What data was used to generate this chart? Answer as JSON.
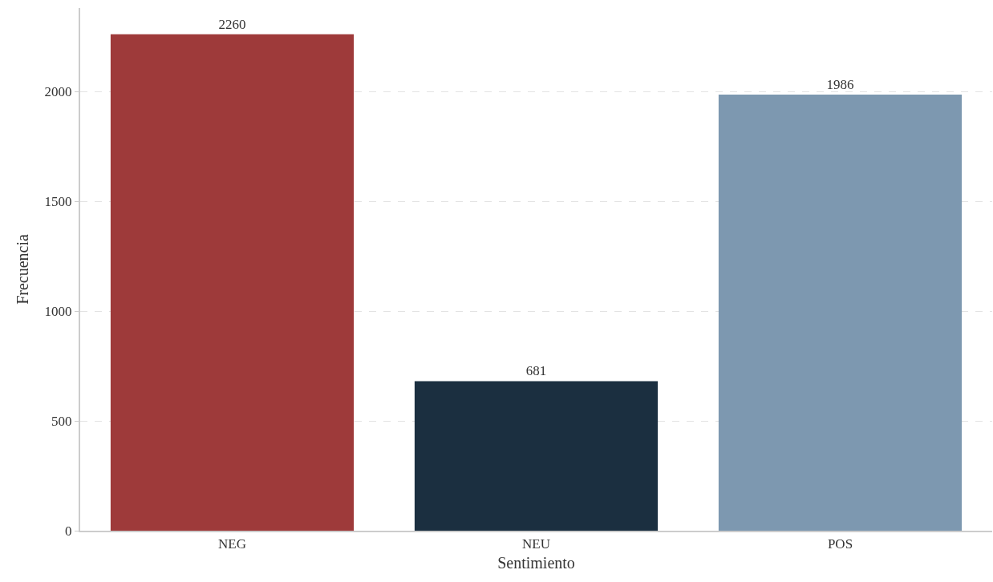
{
  "chart_data": {
    "type": "bar",
    "xlabel": "Sentimiento",
    "ylabel": "Frecuencia",
    "categories": [
      "NEG",
      "NEU",
      "POS"
    ],
    "values": [
      2260,
      681,
      1986
    ],
    "colors": [
      "#9e3a3a",
      "#1b2f40",
      "#7d98b0"
    ],
    "ylim": [
      0,
      2380
    ],
    "yticks": [
      0,
      500,
      1000,
      1500,
      2000
    ],
    "grid": "y",
    "data_labels": true,
    "legend": false
  }
}
